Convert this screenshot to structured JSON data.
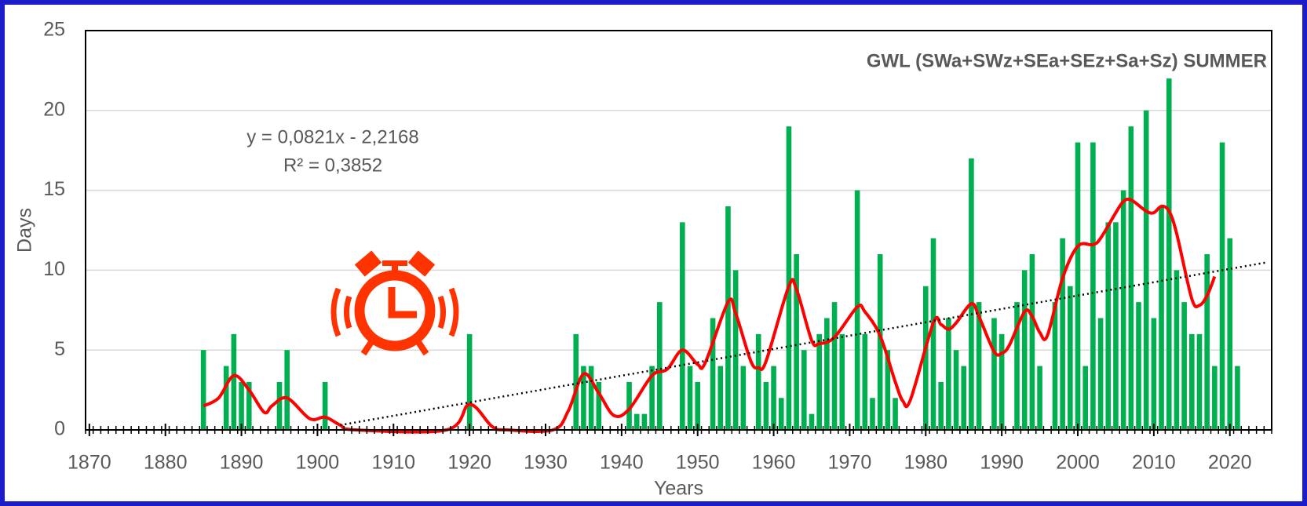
{
  "chart_data": {
    "type": "bar",
    "title": "GWL (SWa+SWz+SEa+SEz+Sa+Sz)  SUMMER",
    "xlabel": "Years",
    "ylabel": "Days",
    "annotations": [
      "y = 0,0821x - 2,2168",
      "R² = 0,3852"
    ],
    "xlim": [
      1869.5,
      2025.5
    ],
    "xticks": [
      1870,
      1880,
      1890,
      1900,
      1910,
      1920,
      1930,
      1940,
      1950,
      1960,
      1970,
      1980,
      1990,
      2000,
      2010,
      2020
    ],
    "ylim": [
      0,
      25
    ],
    "yticks": [
      0,
      5,
      10,
      15,
      20,
      25
    ],
    "grid": true,
    "series": [
      {
        "type": "bar",
        "color": "#00b050",
        "x": [
          1885,
          1888,
          1889,
          1890,
          1891,
          1895,
          1896,
          1901,
          1920,
          1934,
          1935,
          1936,
          1937,
          1941,
          1942,
          1943,
          1944,
          1945,
          1948,
          1949,
          1950,
          1952,
          1953,
          1954,
          1955,
          1956,
          1958,
          1959,
          1960,
          1961,
          1962,
          1963,
          1964,
          1965,
          1966,
          1967,
          1968,
          1969,
          1971,
          1972,
          1973,
          1974,
          1975,
          1976,
          1980,
          1981,
          1982,
          1983,
          1984,
          1985,
          1986,
          1987,
          1989,
          1990,
          1992,
          1993,
          1994,
          1995,
          1997,
          1998,
          1999,
          2000,
          2001,
          2002,
          2003,
          2004,
          2005,
          2006,
          2007,
          2008,
          2009,
          2010,
          2011,
          2012,
          2013,
          2014,
          2015,
          2016,
          2017,
          2018,
          2019,
          2020,
          2021
        ],
        "values": [
          5,
          4,
          6,
          3,
          3,
          3,
          5,
          3,
          6,
          6,
          4,
          4,
          3,
          3,
          1,
          1,
          4,
          8,
          13,
          4,
          3,
          7,
          4,
          14,
          10,
          4,
          6,
          3,
          4,
          2,
          19,
          11,
          5,
          1,
          6,
          7,
          8,
          6,
          15,
          6,
          2,
          11,
          5,
          2,
          9,
          12,
          3,
          7,
          5,
          4,
          17,
          8,
          7,
          6,
          8,
          10,
          11,
          4,
          8,
          12,
          9,
          18,
          4,
          18,
          7,
          13,
          13,
          15,
          19,
          8,
          20,
          7,
          14,
          22,
          10,
          8,
          6,
          6,
          11,
          4,
          18,
          12,
          4
        ]
      },
      {
        "type": "smooth",
        "color": "#ff0000",
        "x": [
          1885,
          1887,
          1889,
          1891,
          1893,
          1894,
          1896,
          1899,
          1901,
          1903,
          1905,
          1917,
          1920,
          1923,
          1925,
          1931,
          1933,
          1935,
          1937,
          1939,
          1941,
          1944,
          1946,
          1948,
          1950,
          1951,
          1954,
          1955,
          1957,
          1958,
          1959,
          1962,
          1963,
          1965,
          1966,
          1968,
          1971,
          1972,
          1974,
          1976,
          1977,
          1978,
          1981,
          1982,
          1983,
          1984,
          1986,
          1987,
          1989,
          1990,
          1991,
          1993,
          1994,
          1995,
          1996,
          1998,
          2000,
          2002,
          2003,
          2005,
          2006,
          2007,
          2009,
          2010,
          2011,
          2012,
          2013,
          2015,
          2016,
          2017,
          2018
        ],
        "values": [
          1.5,
          2.0,
          3.4,
          2.5,
          1.1,
          1.5,
          2.0,
          0.7,
          0.8,
          0.3,
          0,
          0,
          1.6,
          0.2,
          0,
          0,
          1.2,
          3.5,
          2.3,
          0.9,
          1.3,
          3.4,
          3.8,
          5.0,
          4.1,
          4.2,
          8.0,
          7.3,
          4.3,
          3.9,
          4.3,
          9.0,
          8.8,
          5.6,
          5.4,
          5.8,
          7.7,
          7.4,
          5.9,
          3.0,
          1.8,
          1.9,
          6.7,
          6.6,
          6.3,
          6.7,
          7.9,
          7.1,
          4.9,
          4.8,
          5.3,
          7.4,
          7.1,
          6.1,
          5.9,
          9.5,
          11.5,
          11.6,
          12.0,
          13.6,
          14.3,
          14.4,
          13.7,
          13.6,
          14.0,
          13.7,
          12.3,
          8.2,
          7.8,
          8.4,
          9.6
        ]
      },
      {
        "type": "trend",
        "color": "#000000",
        "x": [
          1903,
          2025
        ],
        "values": [
          0.3,
          10.5
        ]
      }
    ]
  }
}
